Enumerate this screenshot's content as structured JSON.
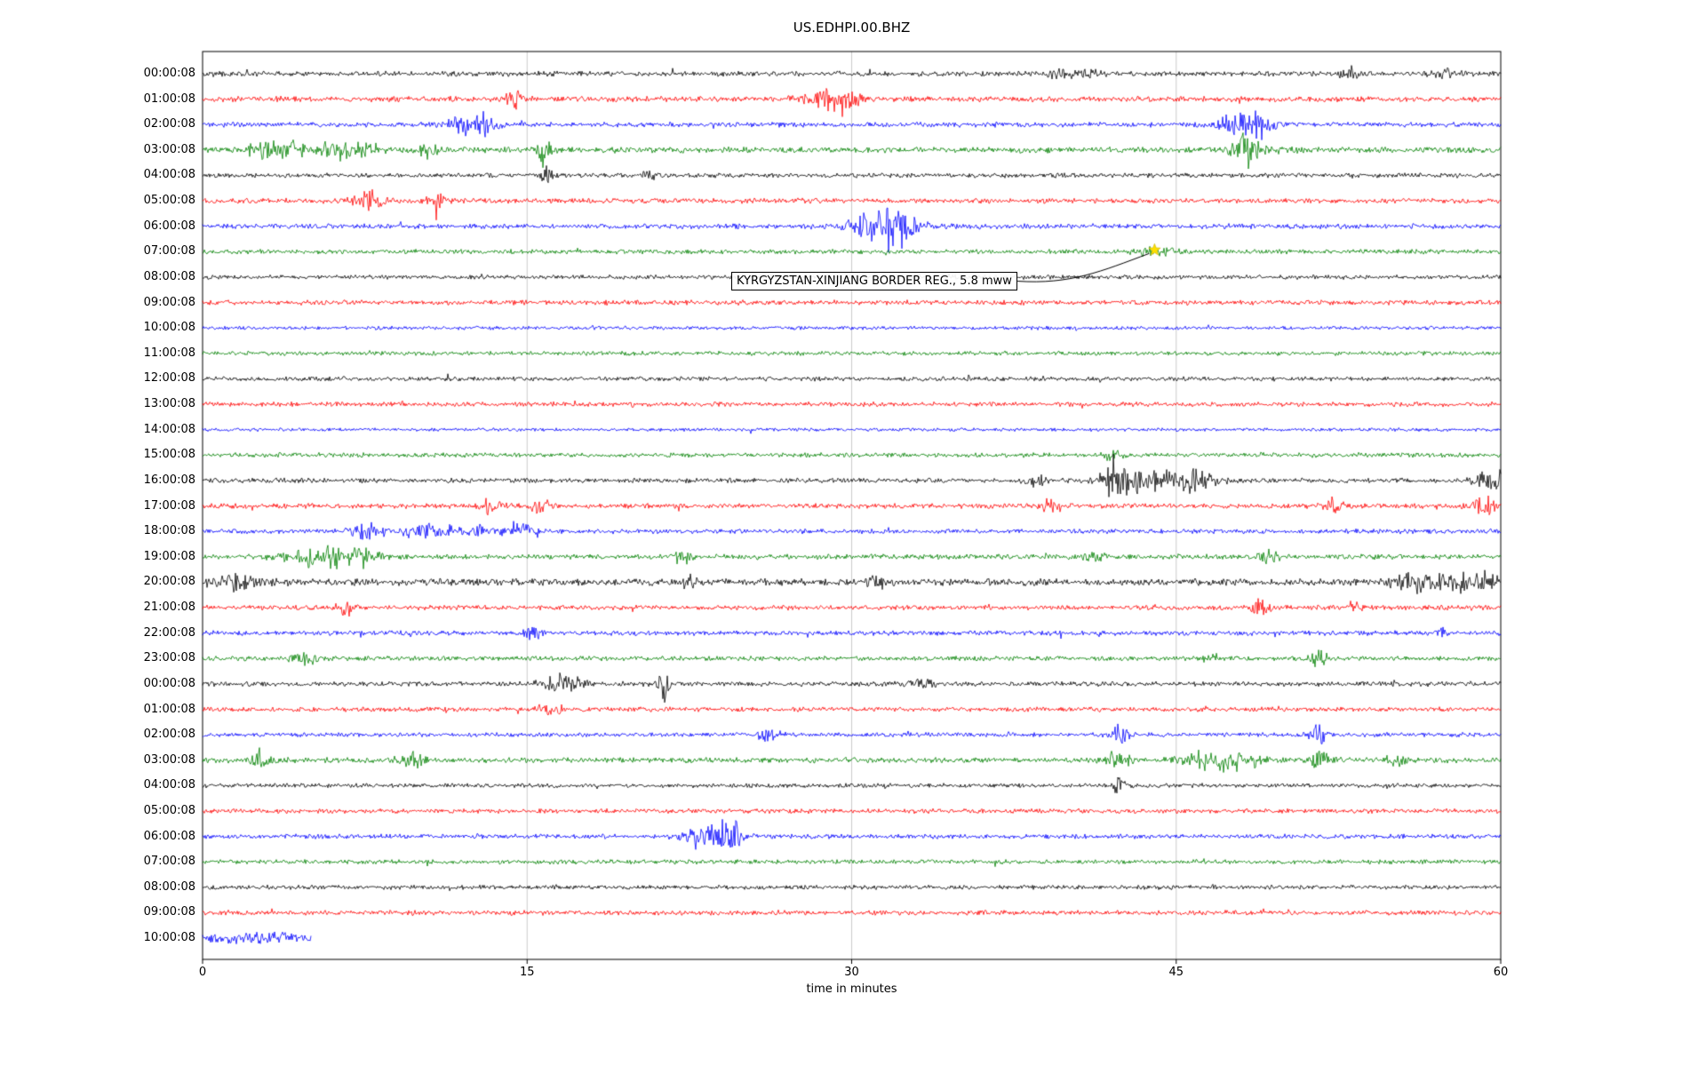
{
  "annotation": {
    "text": "KYRGYZSTAN-XINJIANG BORDER REG., 5.8 mww",
    "marker": {
      "shape": "star",
      "color": "#ffdf00",
      "trace_label": "07:00:08",
      "x_min": 44
    }
  },
  "chart_data": {
    "type": "line",
    "title": "US.EDHPI.00.BHZ",
    "xlabel": "time in minutes",
    "x_range_minutes": [
      0,
      60
    ],
    "x_ticks": [
      0,
      15,
      30,
      45,
      60
    ],
    "x_tick_labels": [
      "0",
      "15",
      "30",
      "45",
      "60"
    ],
    "grid": "vertical-light",
    "trace_color_cycle": [
      "#000000",
      "#ff0000",
      "#0000ff",
      "#008000"
    ],
    "rows": [
      {
        "label": "00:00:08",
        "color": "#000000",
        "noise": 2.2,
        "events": [
          [
            39.5,
            7,
            0.25
          ],
          [
            40.7,
            4,
            0.5
          ],
          [
            53,
            6,
            0.3
          ],
          [
            57.5,
            3,
            0.5
          ]
        ]
      },
      {
        "label": "01:00:08",
        "color": "#ff0000",
        "noise": 2.4,
        "events": [
          [
            14.5,
            6,
            0.35
          ],
          [
            29,
            9,
            0.7
          ],
          [
            29.8,
            7,
            0.35
          ]
        ]
      },
      {
        "label": "02:00:08",
        "color": "#0000ff",
        "noise": 2.2,
        "events": [
          [
            12.2,
            8,
            0.7
          ],
          [
            13.1,
            6,
            0.4
          ],
          [
            48,
            9,
            0.7
          ],
          [
            48.9,
            7,
            0.4
          ]
        ]
      },
      {
        "label": "03:00:08",
        "color": "#008000",
        "noise": 2.6,
        "events": [
          [
            2.9,
            8,
            0.5
          ],
          [
            4.1,
            6,
            0.6
          ],
          [
            6.2,
            8,
            0.5
          ],
          [
            7.6,
            6,
            0.4
          ],
          [
            10.5,
            6,
            0.4
          ],
          [
            15.8,
            15,
            0.22
          ],
          [
            48.2,
            14,
            0.45
          ],
          [
            50,
            5,
            0.4
          ]
        ]
      },
      {
        "label": "04:00:08",
        "color": "#000000",
        "noise": 2.0,
        "events": [
          [
            15.9,
            12,
            0.15
          ],
          [
            20.6,
            6,
            0.25
          ]
        ]
      },
      {
        "label": "05:00:08",
        "color": "#ff0000",
        "noise": 2.2,
        "events": [
          [
            7.6,
            8,
            0.45
          ],
          [
            10.8,
            6,
            0.3
          ]
        ]
      },
      {
        "label": "06:00:08",
        "color": "#0000ff",
        "noise": 2.2,
        "events": [
          [
            30.6,
            5,
            0.5
          ],
          [
            31.6,
            12,
            1.0
          ],
          [
            32.4,
            6,
            0.5
          ]
        ]
      },
      {
        "label": "07:00:08",
        "color": "#008000",
        "noise": 2.0,
        "events": [
          [
            44,
            3,
            0.6
          ]
        ]
      },
      {
        "label": "08:00:08",
        "color": "#000000",
        "noise": 1.9,
        "events": []
      },
      {
        "label": "09:00:08",
        "color": "#ff0000",
        "noise": 2.1,
        "events": []
      },
      {
        "label": "10:00:08",
        "color": "#0000ff",
        "noise": 1.6,
        "events": []
      },
      {
        "label": "11:00:08",
        "color": "#008000",
        "noise": 1.8,
        "events": []
      },
      {
        "label": "12:00:08",
        "color": "#000000",
        "noise": 1.9,
        "events": []
      },
      {
        "label": "13:00:08",
        "color": "#ff0000",
        "noise": 2.0,
        "events": []
      },
      {
        "label": "14:00:08",
        "color": "#0000ff",
        "noise": 1.5,
        "events": []
      },
      {
        "label": "15:00:08",
        "color": "#008000",
        "noise": 2.0,
        "events": [
          [
            42,
            4,
            0.3
          ]
        ]
      },
      {
        "label": "16:00:08",
        "color": "#000000",
        "noise": 2.1,
        "events": [
          [
            38.5,
            5,
            0.3
          ],
          [
            42.2,
            14,
            0.35
          ],
          [
            43.3,
            8,
            1.2
          ],
          [
            45.8,
            7,
            0.8
          ],
          [
            59.6,
            9,
            0.5
          ]
        ]
      },
      {
        "label": "17:00:08",
        "color": "#ff0000",
        "noise": 2.2,
        "events": [
          [
            13.3,
            6,
            0.35
          ],
          [
            15.6,
            7,
            0.3
          ],
          [
            39.3,
            6,
            0.3
          ],
          [
            52.2,
            6,
            0.3
          ],
          [
            59.2,
            8,
            0.4
          ]
        ]
      },
      {
        "label": "18:00:08",
        "color": "#0000ff",
        "noise": 2.0,
        "events": [
          [
            7.6,
            6,
            0.6
          ],
          [
            10.1,
            7,
            0.5
          ],
          [
            12.1,
            8,
            0.6
          ],
          [
            14.6,
            8,
            0.5
          ]
        ]
      },
      {
        "label": "19:00:08",
        "color": "#008000",
        "noise": 2.2,
        "events": [
          [
            4.6,
            8,
            0.7
          ],
          [
            6.1,
            7,
            0.6
          ],
          [
            7.4,
            8,
            0.5
          ],
          [
            22.2,
            6,
            0.3
          ],
          [
            41.2,
            5,
            0.3
          ],
          [
            49.3,
            6,
            0.3
          ]
        ]
      },
      {
        "label": "20:00:08",
        "color": "#000000",
        "noise": 3.0,
        "events": [
          [
            1.5,
            5,
            0.8
          ],
          [
            22.6,
            5,
            0.3
          ],
          [
            31.2,
            5,
            0.3
          ],
          [
            56.2,
            8,
            0.8
          ],
          [
            58.7,
            9,
            1.0
          ]
        ]
      },
      {
        "label": "21:00:08",
        "color": "#ff0000",
        "noise": 2.1,
        "events": [
          [
            6.6,
            8,
            0.25
          ],
          [
            48.9,
            7,
            0.3
          ],
          [
            53.2,
            4,
            0.3
          ]
        ]
      },
      {
        "label": "22:00:08",
        "color": "#0000ff",
        "noise": 2.1,
        "events": [
          [
            15.3,
            5,
            0.3
          ],
          [
            57.2,
            4,
            0.3
          ]
        ]
      },
      {
        "label": "23:00:08",
        "color": "#008000",
        "noise": 2.0,
        "events": [
          [
            4.7,
            6,
            0.35
          ],
          [
            46.6,
            4,
            0.3
          ],
          [
            51.6,
            8,
            0.25
          ]
        ]
      },
      {
        "label": "00:00:08",
        "color": "#000000",
        "noise": 2.1,
        "events": [
          [
            16.3,
            6,
            0.5
          ],
          [
            17.1,
            5,
            0.4
          ],
          [
            21.3,
            14,
            0.18
          ],
          [
            33.2,
            5,
            0.4
          ]
        ]
      },
      {
        "label": "01:00:08",
        "color": "#ff0000",
        "noise": 2.0,
        "events": [
          [
            16.1,
            6,
            0.35
          ]
        ]
      },
      {
        "label": "02:00:08",
        "color": "#0000ff",
        "noise": 1.9,
        "events": [
          [
            26.1,
            5,
            0.4
          ],
          [
            42.4,
            9,
            0.25
          ],
          [
            51.6,
            7,
            0.3
          ]
        ]
      },
      {
        "label": "03:00:08",
        "color": "#008000",
        "noise": 2.4,
        "events": [
          [
            2.7,
            9,
            0.3
          ],
          [
            9.6,
            7,
            0.5
          ],
          [
            42.4,
            10,
            0.35
          ],
          [
            46.6,
            8,
            0.8
          ],
          [
            48.1,
            7,
            0.6
          ],
          [
            51.6,
            10,
            0.3
          ],
          [
            55.2,
            5,
            0.4
          ]
        ]
      },
      {
        "label": "04:00:08",
        "color": "#000000",
        "noise": 1.9,
        "events": [
          [
            42.4,
            10,
            0.18
          ]
        ]
      },
      {
        "label": "05:00:08",
        "color": "#ff0000",
        "noise": 2.0,
        "events": []
      },
      {
        "label": "06:00:08",
        "color": "#0000ff",
        "noise": 2.0,
        "events": [
          [
            22.9,
            8,
            0.6
          ],
          [
            23.9,
            10,
            0.5
          ],
          [
            24.6,
            8,
            0.4
          ]
        ]
      },
      {
        "label": "07:00:08",
        "color": "#008000",
        "noise": 1.9,
        "events": []
      },
      {
        "label": "08:00:08",
        "color": "#000000",
        "noise": 1.9,
        "events": []
      },
      {
        "label": "09:00:08",
        "color": "#ff0000",
        "noise": 2.1,
        "events": []
      },
      {
        "label": "10:00:08",
        "color": "#0000ff",
        "noise": 2.4,
        "events": [
          [
            1.5,
            3,
            1.0
          ],
          [
            3.5,
            3,
            0.8
          ]
        ],
        "end_min": 5
      }
    ]
  }
}
